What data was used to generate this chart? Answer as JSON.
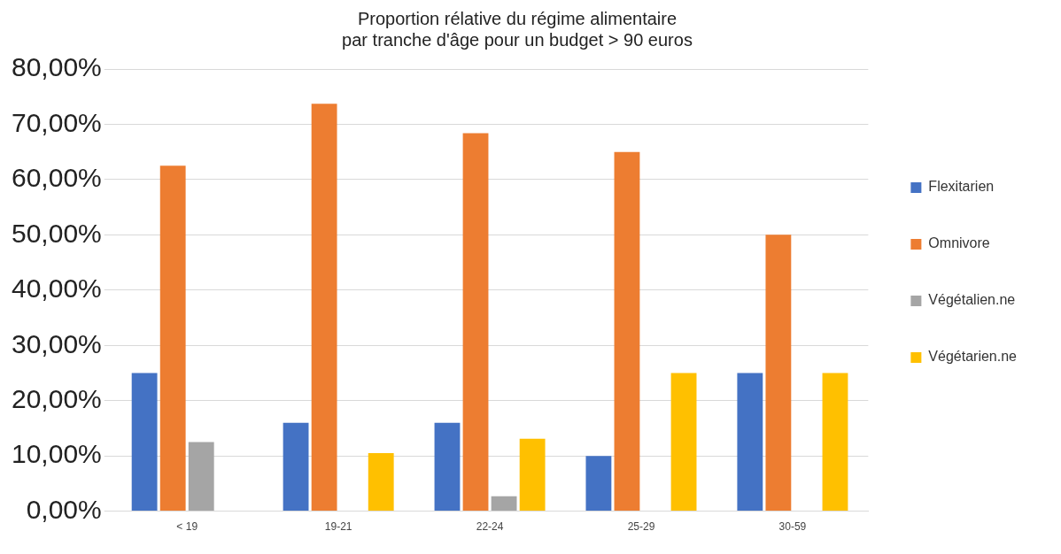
{
  "chart_data": {
    "type": "bar",
    "title": [
      "Proportion rélative du régime alimentaire",
      "par tranche d'âge pour un budget > 90 euros"
    ],
    "categories": [
      "< 19",
      "19-21",
      "22-24",
      "25-29",
      "30-59"
    ],
    "series": [
      {
        "name": "Flexitarien",
        "color": "#4472c4",
        "values": [
          25,
          16,
          16,
          10,
          25
        ]
      },
      {
        "name": "Omnivore",
        "color": "#ed7d31",
        "values": [
          62.5,
          73.7,
          68.4,
          65,
          50
        ]
      },
      {
        "name": "Végétalien.ne",
        "color": "#a5a5a5",
        "values": [
          12.5,
          0,
          2.7,
          0,
          0
        ]
      },
      {
        "name": "Végétarien.ne",
        "color": "#ffc000",
        "values": [
          0,
          10.5,
          13.1,
          25,
          25
        ]
      }
    ],
    "ylim": [
      0,
      80
    ],
    "yticks": [
      {
        "value": 0,
        "label": "0,00%"
      },
      {
        "value": 10,
        "label": "10,00%"
      },
      {
        "value": 20,
        "label": "20,00%"
      },
      {
        "value": 30,
        "label": "30,00%"
      },
      {
        "value": 40,
        "label": "40,00%"
      },
      {
        "value": 50,
        "label": "50,00%"
      },
      {
        "value": 60,
        "label": "60,00%"
      },
      {
        "value": 70,
        "label": "70,00%"
      },
      {
        "value": 80,
        "label": "80,00%"
      }
    ],
    "grid": "y",
    "legend": "right"
  }
}
